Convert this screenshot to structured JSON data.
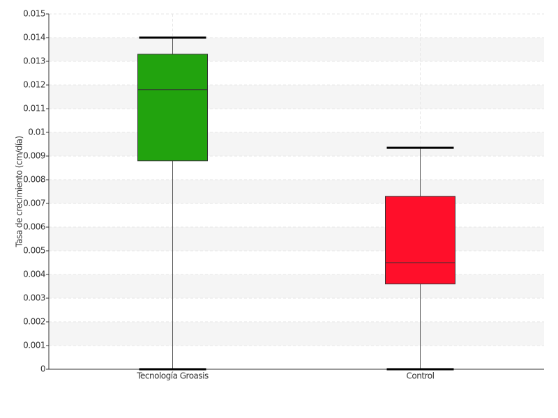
{
  "chart_data": {
    "type": "box",
    "y_label": "Tasa de crecimiento (cm/día)",
    "categories": [
      "Tecnología Groasis",
      "Control"
    ],
    "colors": [
      "#22a30e",
      "#ff0f2a"
    ],
    "boxes": [
      {
        "min": 0,
        "q1": 0.0088,
        "median": 0.0118,
        "q3": 0.0133,
        "max": 0.014
      },
      {
        "min": 0,
        "q1": 0.0036,
        "median": 0.0045,
        "q3": 0.0073,
        "max": 0.00935
      }
    ],
    "ylim": [
      0,
      0.015
    ],
    "yticks": [
      0,
      0.001,
      0.002,
      0.003,
      0.004,
      0.005,
      0.006,
      0.007,
      0.008,
      0.009,
      0.01,
      0.011,
      0.012,
      0.013,
      0.014,
      0.015
    ],
    "grid": true
  }
}
